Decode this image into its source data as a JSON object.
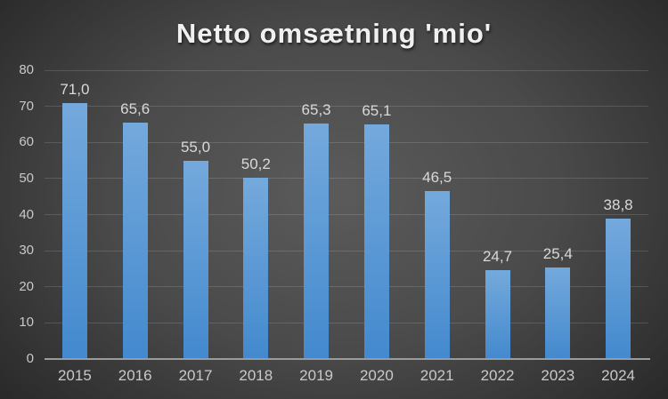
{
  "chart_data": {
    "type": "bar",
    "title": "Netto omsætning 'mio'",
    "categories": [
      "2015",
      "2016",
      "2017",
      "2018",
      "2019",
      "2020",
      "2021",
      "2022",
      "2023",
      "2024"
    ],
    "values": [
      71.0,
      65.6,
      55.0,
      50.2,
      65.3,
      65.1,
      46.5,
      24.7,
      25.4,
      38.8
    ],
    "value_labels": [
      "71,0",
      "65,6",
      "55,0",
      "50,2",
      "65,3",
      "65,1",
      "46,5",
      "24,7",
      "25,4",
      "38,8"
    ],
    "xlabel": "",
    "ylabel": "",
    "ylim": [
      0,
      80
    ],
    "ytick_step": 10,
    "ytick_labels": [
      "0",
      "10",
      "20",
      "30",
      "40",
      "50",
      "60",
      "70",
      "80"
    ],
    "grid": true,
    "legend": "none",
    "colors": {
      "bar_top": "#74A9DC",
      "bar_bottom": "#4389CE",
      "background_center": "#5b5b5b",
      "background_corner": "#232323",
      "gridline": "rgba(255,255,255,0.14)",
      "axis_line": "#9b9b9b",
      "tick_label": "#c9c9c9",
      "data_label": "#d9d9d9",
      "title": "#f0f0f0"
    }
  }
}
